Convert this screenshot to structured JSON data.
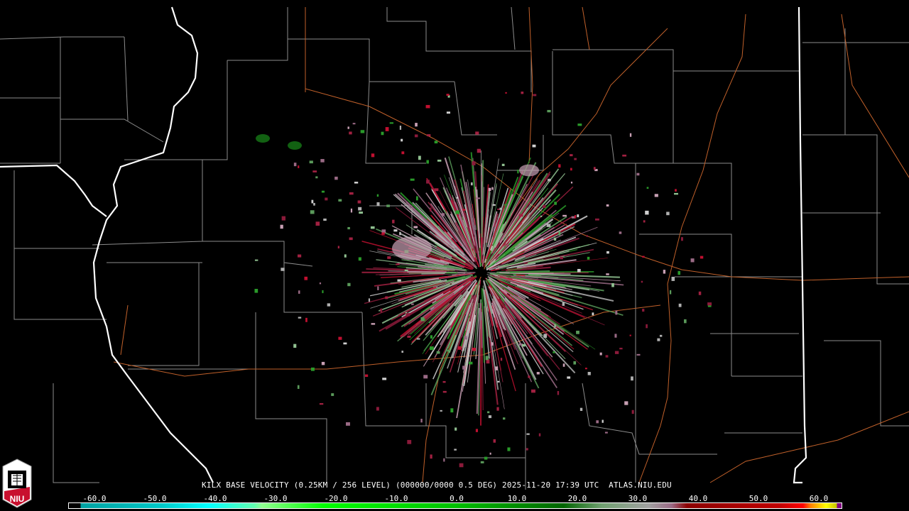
{
  "caption": {
    "station": "KILX",
    "product": "BASE VELOCITY",
    "resolution": "(0.25KM / 256 LEVEL)",
    "scan": "(000000/0000 0.5 DEG)",
    "datetime": "2025-11-20 17:39 UTC",
    "source": "ATLAS.NIU.EDU"
  },
  "colorbar": {
    "ticks": [
      "-60.0",
      "-50.0",
      "-40.0",
      "-30.0",
      "-20.0",
      "-10.0",
      "0.0",
      "10.0",
      "20.0",
      "30.0",
      "40.0",
      "50.0",
      "60.0"
    ],
    "tick_values": [
      -60,
      -50,
      -40,
      -30,
      -20,
      -10,
      0,
      10,
      20,
      30,
      40,
      50,
      60
    ],
    "range": [
      -64,
      64
    ],
    "colors": {
      "inbound_strong": "#00c8c8",
      "inbound_cyan": "#00ffff",
      "inbound_green": "#00ff00",
      "inbound_dark_green": "#006400",
      "zero_gray": "#a0a0a0",
      "outbound_mauve": "#9a6a85",
      "outbound_dark_red": "#8b0000",
      "outbound_red": "#ff0000",
      "outbound_orange": "#ff8000",
      "outbound_yellow": "#ffff00",
      "range_folded": "#800080"
    }
  },
  "logo": {
    "text": "NIU",
    "icon": "niu-holmes-tower-logo"
  },
  "map": {
    "radar_site": "KILX",
    "state_border_color": "#ffffff",
    "county_line_color": "#8c8c8c",
    "highway_color": "#c0602a"
  }
}
